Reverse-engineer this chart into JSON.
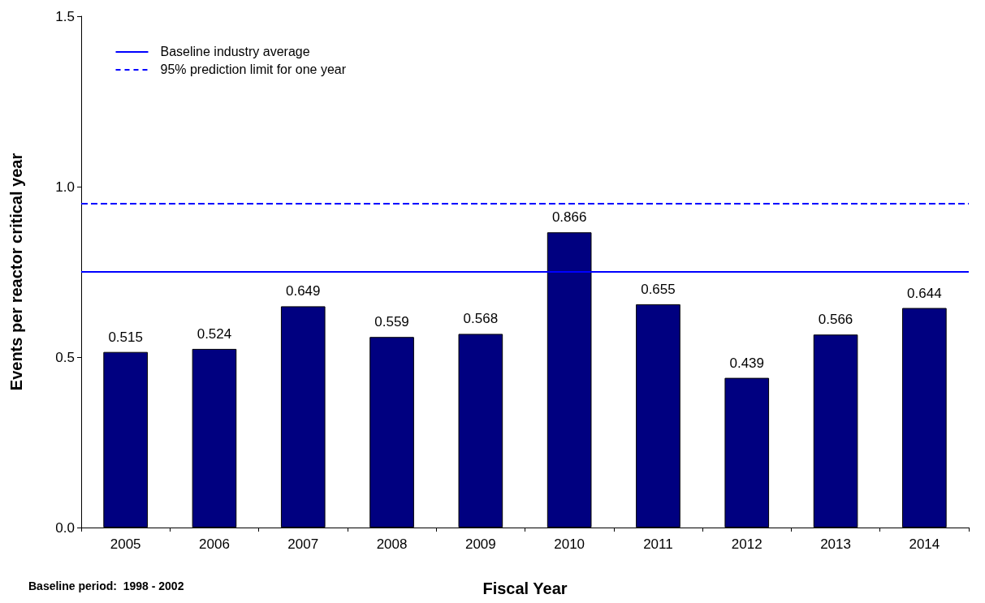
{
  "chart_data": {
    "type": "bar",
    "xlabel": "Fiscal Year",
    "ylabel": "Events per reactor critical year",
    "categories": [
      "2005",
      "2006",
      "2007",
      "2008",
      "2009",
      "2010",
      "2011",
      "2012",
      "2013",
      "2014"
    ],
    "values": [
      0.515,
      0.524,
      0.649,
      0.559,
      0.568,
      0.866,
      0.655,
      0.439,
      0.566,
      0.644
    ],
    "color": "#000080",
    "data_labels": true,
    "ylim": [
      0,
      1.5
    ],
    "yticks": [
      {
        "value": 0,
        "label": "0.0"
      },
      {
        "value": 0.5,
        "label": "0.5"
      },
      {
        "value": 1,
        "label": "1.0"
      },
      {
        "value": 1.5,
        "label": "1.5"
      }
    ],
    "grid": false,
    "legend": "top left",
    "ref_lines": [
      {
        "axis": "y",
        "value": 0.75,
        "label": "Baseline industry average",
        "color": "#0000ff",
        "line_style": "solid"
      },
      {
        "axis": "y",
        "value": 0.95,
        "label": "95% prediction limit for one year",
        "color": "#0000ff",
        "line_style": "dashed"
      }
    ],
    "annotations": [
      "Baseline period:  1998 - 2002"
    ]
  }
}
